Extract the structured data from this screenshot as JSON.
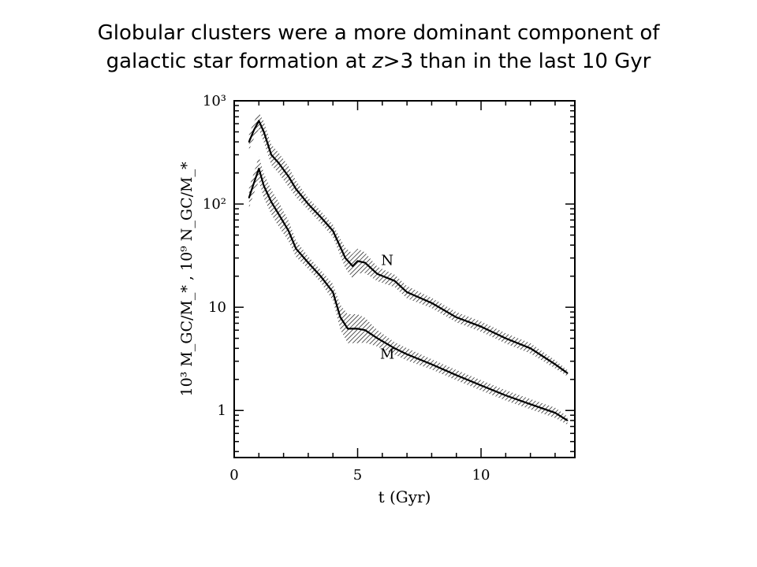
{
  "slide": {
    "title_line1": "Globular clusters were a more dominant component of",
    "title_line2_pre": "galactic star formation at ",
    "title_line2_z": "z",
    "title_line2_post": ">3 than in the last 10 Gyr"
  },
  "chart_data": {
    "type": "line",
    "title": "",
    "xlabel": "t  (Gyr)",
    "ylabel": "10³ M_GC/M_*  ,  10⁹ N_GC/M_*",
    "xlim": [
      0,
      13.8
    ],
    "ylim": [
      0.35,
      1000
    ],
    "yscale": "log",
    "grid": false,
    "x_ticks": [
      {
        "value": 0,
        "label": "0"
      },
      {
        "value": 5,
        "label": "5"
      },
      {
        "value": 10,
        "label": "10"
      }
    ],
    "y_ticks": [
      {
        "value": 1,
        "label": "1"
      },
      {
        "value": 10,
        "label": "10"
      },
      {
        "value": 100,
        "label": "10²"
      },
      {
        "value": 1000,
        "label": "10³"
      }
    ],
    "series": [
      {
        "name": "N",
        "color": "#000000",
        "points": [
          [
            0.6,
            400
          ],
          [
            0.8,
            520
          ],
          [
            1.0,
            640
          ],
          [
            1.2,
            500
          ],
          [
            1.5,
            300
          ],
          [
            1.8,
            250
          ],
          [
            2.2,
            185
          ],
          [
            2.5,
            140
          ],
          [
            3.0,
            100
          ],
          [
            3.5,
            75
          ],
          [
            4.0,
            55
          ],
          [
            4.5,
            30
          ],
          [
            4.8,
            25
          ],
          [
            5.0,
            28
          ],
          [
            5.3,
            27
          ],
          [
            5.8,
            21
          ],
          [
            6.5,
            18
          ],
          [
            7.0,
            14
          ],
          [
            8.0,
            11
          ],
          [
            9.0,
            8
          ],
          [
            10.0,
            6.5
          ],
          [
            11.0,
            5
          ],
          [
            12.0,
            4
          ],
          [
            13.0,
            2.8
          ],
          [
            13.5,
            2.3
          ]
        ],
        "band_halfwidth_dex": [
          0.08,
          0.08,
          0.08,
          0.1,
          0.1,
          0.1,
          0.1,
          0.08,
          0.06,
          0.06,
          0.06,
          0.1,
          0.12,
          0.12,
          0.1,
          0.07,
          0.06,
          0.06,
          0.05,
          0.05,
          0.05,
          0.05,
          0.05,
          0.04,
          0.03
        ]
      },
      {
        "name": "M",
        "color": "#000000",
        "points": [
          [
            0.6,
            115
          ],
          [
            0.8,
            160
          ],
          [
            1.0,
            220
          ],
          [
            1.2,
            150
          ],
          [
            1.5,
            105
          ],
          [
            1.8,
            80
          ],
          [
            2.2,
            55
          ],
          [
            2.5,
            37
          ],
          [
            3.0,
            27
          ],
          [
            3.5,
            20
          ],
          [
            4.0,
            14
          ],
          [
            4.3,
            8
          ],
          [
            4.6,
            6.2
          ],
          [
            5.0,
            6.2
          ],
          [
            5.3,
            6
          ],
          [
            5.8,
            5
          ],
          [
            6.5,
            4
          ],
          [
            7.0,
            3.5
          ],
          [
            8.0,
            2.8
          ],
          [
            9.0,
            2.2
          ],
          [
            10.0,
            1.75
          ],
          [
            11.0,
            1.4
          ],
          [
            12.0,
            1.15
          ],
          [
            13.0,
            0.95
          ],
          [
            13.5,
            0.8
          ]
        ],
        "band_halfwidth_dex": [
          0.1,
          0.1,
          0.12,
          0.12,
          0.12,
          0.12,
          0.1,
          0.08,
          0.06,
          0.06,
          0.08,
          0.12,
          0.14,
          0.14,
          0.12,
          0.08,
          0.06,
          0.06,
          0.05,
          0.05,
          0.05,
          0.05,
          0.05,
          0.05,
          0.04
        ]
      }
    ],
    "annotations": [
      {
        "text": "N",
        "x": 6.2,
        "y": 29,
        "series": "N"
      },
      {
        "text": "M",
        "x": 6.2,
        "y": 3.6,
        "series": "M"
      }
    ]
  }
}
